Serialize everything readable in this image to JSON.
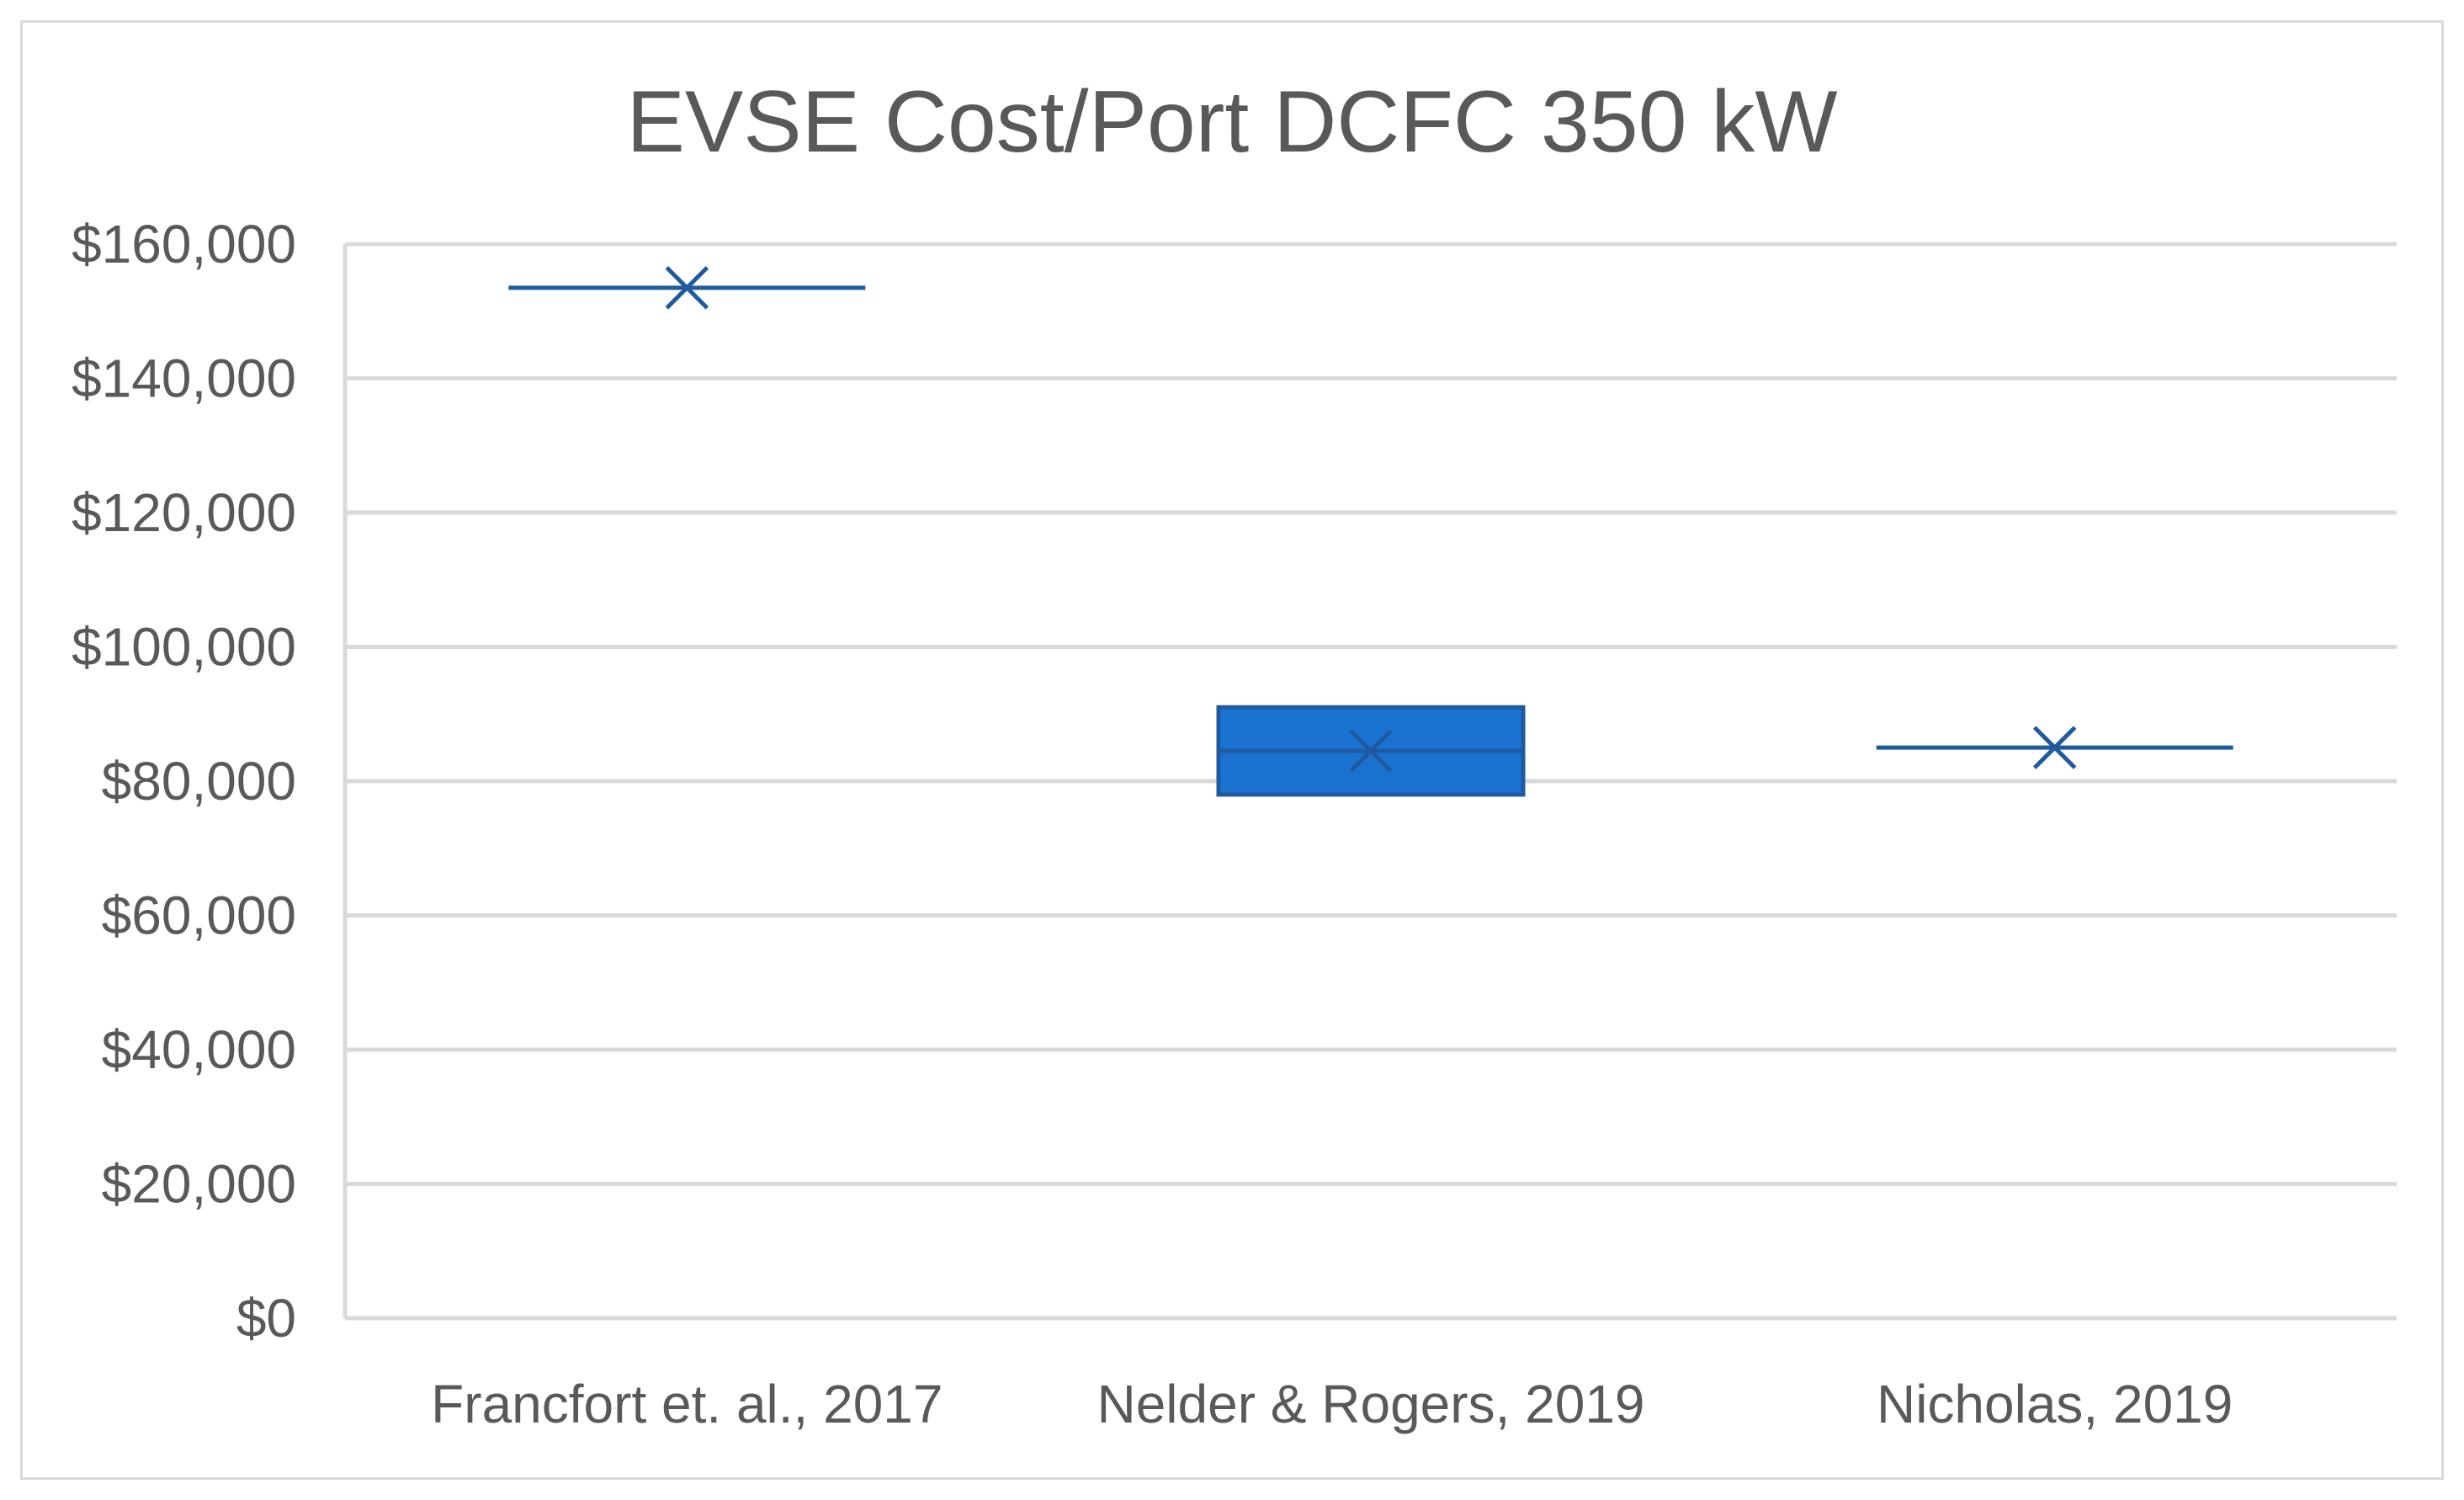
{
  "chart_data": {
    "type": "box",
    "title": "EVSE Cost/Port DCFC 350 kW",
    "xlabel": "",
    "ylabel": "",
    "ylim": [
      0,
      160000
    ],
    "yticks": [
      0,
      20000,
      40000,
      60000,
      80000,
      100000,
      120000,
      140000,
      160000
    ],
    "ytick_labels": [
      "$0",
      "$20,000",
      "$40,000",
      "$60,000",
      "$80,000",
      "$100,000",
      "$120,000",
      "$140,000",
      "$160,000"
    ],
    "grid": true,
    "legend": "none",
    "categories": [
      "Francfort et. al., 2017",
      "Nelder & Rogers, 2019",
      "Nicholas, 2019"
    ],
    "boxes": [
      {
        "category": "Francfort et. al., 2017",
        "q1": 153500,
        "median": 153500,
        "q3": 153500,
        "mean": 153500
      },
      {
        "category": "Nelder & Rogers, 2019",
        "q1": 78000,
        "median": 84500,
        "q3": 91000,
        "mean": 84500
      },
      {
        "category": "Nicholas, 2019",
        "q1": 85000,
        "median": 85000,
        "q3": 85000,
        "mean": 85000
      }
    ],
    "colors": {
      "box_fill": "#1a72d0",
      "box_stroke": "#1f5aa0",
      "line": "#1f5aa0",
      "grid": "#d9d9d9",
      "text": "#595959"
    }
  }
}
